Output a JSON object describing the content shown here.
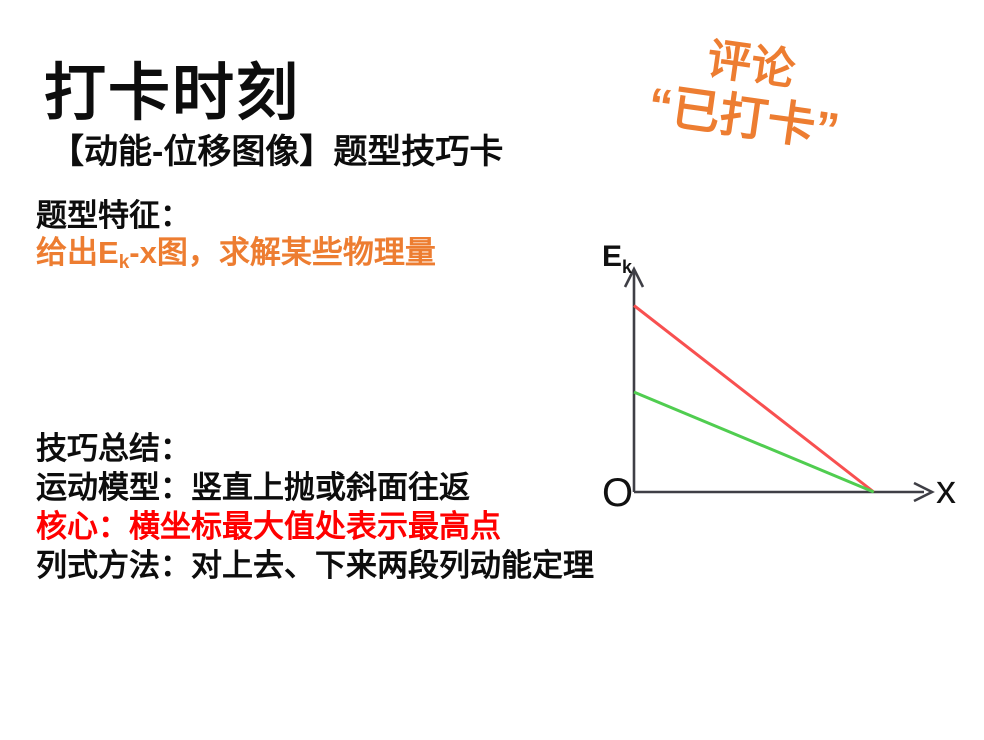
{
  "title": "打卡时刻",
  "subtitle": "【动能-位移图像】题型技巧卡",
  "section_feature": {
    "heading": "题型特征：",
    "line_prefix": "给出E",
    "line_sub": "k",
    "line_rest": "-x图，求解某些物理量",
    "color": "#ED7D31"
  },
  "comment_sticker": {
    "line1": "评论",
    "line2": "“已打卡”",
    "color": "#ED7D31"
  },
  "section_summary": {
    "heading": "技巧总结：",
    "lines": [
      {
        "text": "运动模型：竖直上抛或斜面往返",
        "color": "#0d0d0d"
      },
      {
        "text": "核心：横坐标最大值处表示最高点",
        "color": "#FF0000"
      },
      {
        "text": "列式方法：对上去、下来两段列动能定理",
        "color": "#0d0d0d"
      }
    ]
  },
  "chart_data": {
    "type": "line",
    "title": "",
    "xlabel": "x",
    "ylabel": "Ek",
    "ylabel_main": "E",
    "ylabel_sub": "k",
    "origin_label": "O",
    "axis_color": "#3F3F46",
    "xlim": [
      0,
      1
    ],
    "ylim": [
      0,
      1
    ],
    "grid": false,
    "legend": "none",
    "description": "Two straight Ek-x lines decreasing from the Ek axis to the same intercept on the x axis",
    "series": [
      {
        "name": "upper-red-line",
        "color": "#F85050",
        "points": [
          [
            0,
            0.84
          ],
          [
            0.81,
            0
          ]
        ]
      },
      {
        "name": "lower-green-line",
        "color": "#50CD50",
        "points": [
          [
            0,
            0.45
          ],
          [
            0.81,
            0
          ]
        ]
      }
    ]
  }
}
